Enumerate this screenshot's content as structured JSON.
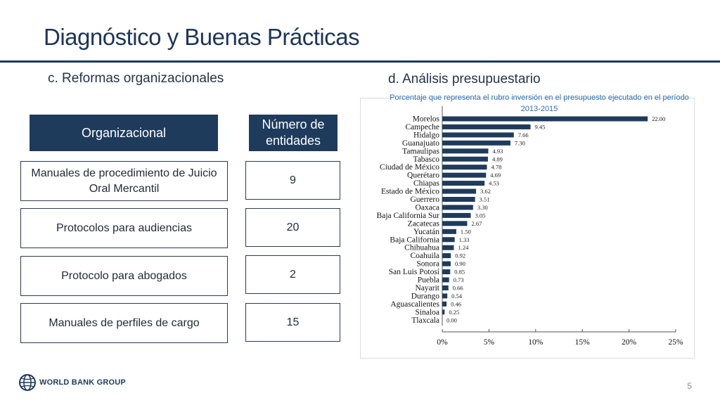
{
  "slide": {
    "title": "Diagnóstico y Buenas Prácticas",
    "left_subtitle": "c. Reformas organizacionales",
    "right_subtitle": "d. Análisis presupuestario",
    "page_number": "5"
  },
  "table": {
    "header_left": "Organizacional",
    "header_right": "Número de entidades",
    "rows": [
      {
        "label": "Manuales de procedimiento de Juicio Oral Mercantil",
        "value": "9"
      },
      {
        "label": "Protocolos para audiencias",
        "value": "20"
      },
      {
        "label": "Protocolo para abogados",
        "value": "2"
      },
      {
        "label": "Manuales de perfiles de cargo",
        "value": "15"
      }
    ]
  },
  "chart_data": {
    "type": "bar",
    "orientation": "horizontal",
    "title": "Porcentaje que representa el rubro inversión en el presupuesto ejecutado en el período 2013-2015",
    "categories": [
      "Morelos",
      "Campeche",
      "Hidalgo",
      "Guanajuato",
      "Tamaulipas",
      "Tabasco",
      "Ciudad de México",
      "Querétaro",
      "Chiapas",
      "Estado de México",
      "Guerrero",
      "Oaxaca",
      "Baja California Sur",
      "Zacatecas",
      "Yucatán",
      "Baja California",
      "Chihuahua",
      "Coahuila",
      "Sonora",
      "San Luis Potosí",
      "Puebla",
      "Nayarit",
      "Durango",
      "Aguascalientes",
      "Sinaloa",
      "Tlaxcala"
    ],
    "values": [
      22.0,
      9.45,
      7.66,
      7.3,
      4.93,
      4.89,
      4.78,
      4.69,
      4.53,
      3.62,
      3.51,
      3.3,
      3.05,
      2.67,
      1.5,
      1.33,
      1.24,
      0.92,
      0.9,
      0.85,
      0.73,
      0.66,
      0.54,
      0.46,
      0.25,
      0.0
    ],
    "value_labels": [
      "22.00",
      "9.45",
      "7.66",
      "7.30",
      "4.93",
      "4.89",
      "4.78",
      "4.69",
      "4.53",
      "3.62",
      "3.51",
      "3.30",
      "3.05",
      "2.67",
      "1.50",
      "1.33",
      "1.24",
      "0.92",
      "0.90",
      "0.85",
      "0.73",
      "0.66",
      "0.54",
      "0.46",
      "0.25",
      "0.00"
    ],
    "xlim": [
      0,
      25
    ],
    "xticks": [
      0,
      5,
      10,
      15,
      20,
      25
    ],
    "xtick_labels": [
      "0%",
      "5%",
      "10%",
      "15%",
      "20%",
      "25%"
    ],
    "bar_color": "#1f3b5c",
    "grid": false
  },
  "footer": {
    "brand": "WORLD BANK GROUP",
    "logo_icon": "globe-icon"
  }
}
